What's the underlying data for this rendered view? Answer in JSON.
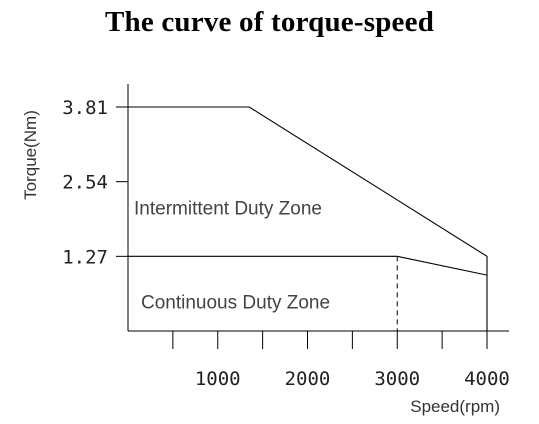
{
  "chart_data": {
    "type": "line",
    "title": "The curve of torque-speed",
    "xlabel": "Speed(rpm)",
    "ylabel": "Torque(Nm)",
    "xlim": [
      0,
      4250
    ],
    "ylim": [
      0,
      3.81
    ],
    "x_ticks": [
      500,
      1000,
      1500,
      2000,
      2500,
      3000,
      3500,
      4000
    ],
    "x_tick_labels": [
      {
        "value": 1000,
        "label": "1000"
      },
      {
        "value": 2000,
        "label": "2000"
      },
      {
        "value": 3000,
        "label": "3000"
      },
      {
        "value": 4000,
        "label": "4000"
      }
    ],
    "y_tick_labels": [
      {
        "value": 3.81,
        "label": "3.81"
      },
      {
        "value": 2.54,
        "label": "2.54"
      },
      {
        "value": 1.27,
        "label": "1.27"
      }
    ],
    "grid": false,
    "series": [
      {
        "x": [
          0,
          1350,
          4000,
          4000
        ],
        "y": [
          3.81,
          3.81,
          1.27,
          0
        ]
      },
      {
        "x": [
          0,
          3000,
          4000
        ],
        "y": [
          1.27,
          1.27,
          0.95
        ]
      }
    ],
    "reference_lines": [
      {
        "x": 3000,
        "y_from": 0,
        "y_to": 1.27,
        "style": "dashed"
      }
    ],
    "annotations": [
      {
        "text": "Intermittent Duty Zone",
        "x": 1450,
        "y": 2.1
      },
      {
        "text": "Continuous Duty Zone",
        "x": 1450,
        "y": 0.5
      }
    ]
  }
}
